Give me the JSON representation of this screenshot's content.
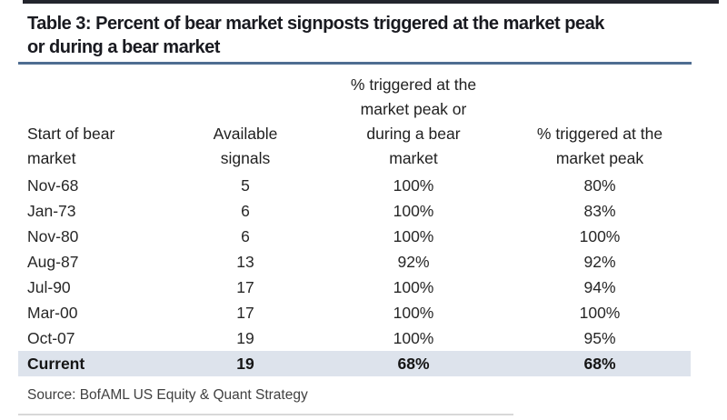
{
  "title_lines": [
    "Table 3: Percent of bear market signposts triggered at the market peak",
    "or during a bear market"
  ],
  "table": {
    "headers": [
      "Start of bear\nmarket",
      "Available\nsignals",
      "% triggered at the\nmarket peak or\nduring a bear\nmarket",
      "% triggered at the\nmarket peak"
    ],
    "rows": [
      [
        "Nov-68",
        "5",
        "100%",
        "80%"
      ],
      [
        "Jan-73",
        "6",
        "100%",
        "83%"
      ],
      [
        "Nov-80",
        "6",
        "100%",
        "100%"
      ],
      [
        "Aug-87",
        "13",
        "92%",
        "92%"
      ],
      [
        "Jul-90",
        "17",
        "100%",
        "94%"
      ],
      [
        "Mar-00",
        "17",
        "100%",
        "100%"
      ],
      [
        "Oct-07",
        "19",
        "100%",
        "95%"
      ],
      [
        "Current",
        "19",
        "68%",
        "68%"
      ]
    ],
    "highlighted_row": "Current"
  },
  "source": "Source: BofAML US Equity & Quant Strategy",
  "colors": {
    "top_rule": "#23252d",
    "title_text": "#191a20",
    "title_underline": "#4f6d91",
    "body_text": "#272727",
    "highlight_row_bg": "#dde3ec",
    "source_text": "#404040",
    "bottom_rule": "#d8d8d8"
  },
  "chart_data": {
    "type": "table",
    "title": "Table 3: Percent of bear market signposts triggered at the market peak or during a bear market",
    "columns": [
      "Start of bear market",
      "Available signals",
      "% triggered at the market peak or during a bear market",
      "% triggered at the market peak"
    ],
    "rows": [
      [
        "Nov-68",
        5,
        "100%",
        "80%"
      ],
      [
        "Jan-73",
        6,
        "100%",
        "83%"
      ],
      [
        "Nov-80",
        6,
        "100%",
        "100%"
      ],
      [
        "Aug-87",
        13,
        "92%",
        "92%"
      ],
      [
        "Jul-90",
        17,
        "100%",
        "94%"
      ],
      [
        "Mar-00",
        17,
        "100%",
        "100%"
      ],
      [
        "Oct-07",
        19,
        "100%",
        "95%"
      ],
      [
        "Current",
        19,
        "68%",
        "68%"
      ]
    ],
    "highlighted_row": "Current",
    "source": "Source: BofAML US Equity & Quant Strategy"
  }
}
